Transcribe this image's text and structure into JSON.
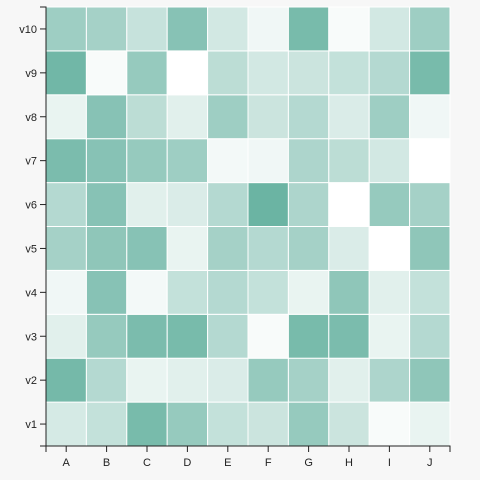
{
  "chart_data": {
    "type": "heatmap",
    "title": "",
    "xlabel": "",
    "ylabel": "",
    "x_categories": [
      "A",
      "B",
      "C",
      "D",
      "E",
      "F",
      "G",
      "H",
      "I",
      "J"
    ],
    "y_categories": [
      "v1",
      "v2",
      "v3",
      "v4",
      "v5",
      "v6",
      "v7",
      "v8",
      "v9",
      "v10"
    ],
    "value_range": [
      0,
      100
    ],
    "color_low": "#ffffff",
    "color_high": "#69b3a2",
    "values": [
      [
        28,
        40,
        90,
        70,
        40,
        35,
        70,
        35,
        5,
        15
      ],
      [
        92,
        50,
        15,
        20,
        25,
        70,
        60,
        20,
        55,
        75
      ],
      [
        20,
        70,
        88,
        90,
        50,
        5,
        90,
        88,
        15,
        50
      ],
      [
        10,
        80,
        8,
        40,
        50,
        40,
        15,
        75,
        20,
        40
      ],
      [
        60,
        75,
        80,
        15,
        60,
        50,
        60,
        25,
        0,
        75
      ],
      [
        50,
        80,
        20,
        25,
        50,
        99,
        55,
        0,
        70,
        60
      ],
      [
        88,
        80,
        70,
        65,
        8,
        10,
        55,
        45,
        30,
        0
      ],
      [
        15,
        80,
        45,
        20,
        65,
        35,
        50,
        25,
        65,
        10
      ],
      [
        95,
        5,
        70,
        0,
        45,
        30,
        35,
        40,
        50,
        90
      ],
      [
        65,
        60,
        38,
        80,
        30,
        10,
        90,
        5,
        30,
        65
      ]
    ]
  }
}
